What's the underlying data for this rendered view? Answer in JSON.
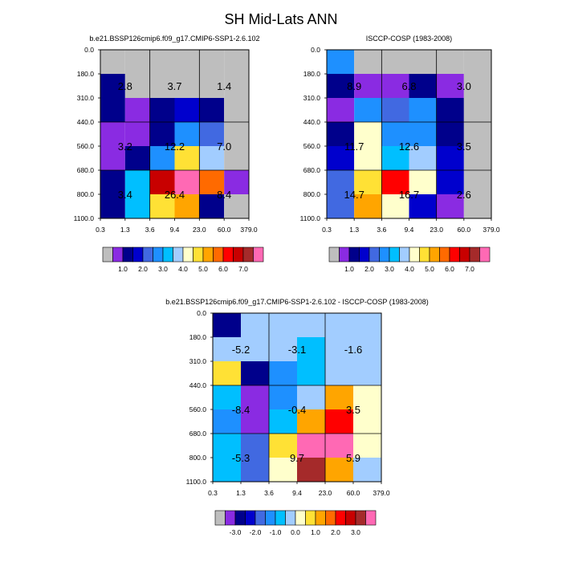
{
  "figure": {
    "title": "SH Mid-Lats ANN"
  },
  "palette": {
    "bins": [
      "#bebebe",
      "#8a2be2",
      "#00008b",
      "#0000cd",
      "#4169e1",
      "#1e90ff",
      "#00bfff",
      "#a2cdff",
      "#ffffcc",
      "#ffe135",
      "#ffa500",
      "#ff6a00",
      "#ff0000",
      "#c80000",
      "#a52a2a",
      "#ff69b4"
    ],
    "cell_stroke": "#000000",
    "divider": "#000000"
  },
  "chart_data": [
    {
      "type": "heatmap",
      "title": "b.e21.BSSP126cmip6.f09_g17.CMIP6-SSP1-2.6.102",
      "x_ticks": [
        "0.3",
        "1.3",
        "3.6",
        "9.4",
        "23.0",
        "60.0",
        "379.0"
      ],
      "y_ticks": [
        "0.0",
        "180.0",
        "310.0",
        "440.0",
        "560.0",
        "680.0",
        "800.0",
        "1100.0"
      ],
      "cells": [
        [
          0,
          0,
          0,
          0,
          0,
          0
        ],
        [
          2,
          0,
          0,
          0,
          0,
          0
        ],
        [
          2,
          1,
          2,
          3,
          2,
          0
        ],
        [
          1,
          1,
          2,
          5,
          4,
          0
        ],
        [
          1,
          2,
          5,
          9,
          7,
          0
        ],
        [
          2,
          6,
          13,
          15,
          11,
          1
        ],
        [
          2,
          6,
          9,
          10,
          2,
          0
        ]
      ],
      "quadrant_labels": [
        "2.8",
        "3.7",
        "1.4",
        "3.2",
        "12.2",
        "7.0",
        "3.4",
        "26.4",
        "8.4"
      ],
      "colorbar_labels": [
        "1.0",
        "2.0",
        "3.0",
        "4.0",
        "5.0",
        "6.0",
        "7.0"
      ]
    },
    {
      "type": "heatmap",
      "title": "ISCCP-COSP (1983-2008)",
      "x_ticks": [
        "0.3",
        "1.3",
        "3.6",
        "9.4",
        "23.0",
        "60.0",
        "379.0"
      ],
      "y_ticks": [
        "0.0",
        "180.0",
        "310.0",
        "440.0",
        "560.0",
        "680.0",
        "800.0",
        "1100.0"
      ],
      "cells": [
        [
          5,
          0,
          0,
          0,
          0,
          0
        ],
        [
          2,
          1,
          1,
          2,
          1,
          0
        ],
        [
          1,
          5,
          4,
          5,
          2,
          0
        ],
        [
          2,
          8,
          5,
          5,
          2,
          0
        ],
        [
          3,
          8,
          6,
          7,
          3,
          0
        ],
        [
          4,
          9,
          12,
          8,
          3,
          0
        ],
        [
          4,
          10,
          8,
          3,
          1,
          0
        ]
      ],
      "quadrant_labels": [
        "8.9",
        "6.8",
        "3.0",
        "11.7",
        "12.6",
        "3.5",
        "14.7",
        "16.7",
        "2.6"
      ],
      "colorbar_labels": [
        "1.0",
        "2.0",
        "3.0",
        "4.0",
        "5.0",
        "6.0",
        "7.0"
      ]
    },
    {
      "type": "heatmap",
      "title": "b.e21.BSSP126cmip6.f09_g17.CMIP6-SSP1-2.6.102 - ISCCP-COSP (1983-2008)",
      "x_ticks": [
        "0.3",
        "1.3",
        "3.6",
        "9.4",
        "23.0",
        "60.0",
        "379.0"
      ],
      "y_ticks": [
        "0.0",
        "180.0",
        "310.0",
        "440.0",
        "560.0",
        "680.0",
        "800.0",
        "1100.0"
      ],
      "cells": [
        [
          2,
          7,
          7,
          7,
          7,
          7
        ],
        [
          7,
          7,
          7,
          6,
          7,
          7
        ],
        [
          9,
          2,
          5,
          6,
          7,
          7
        ],
        [
          6,
          1,
          5,
          7,
          10,
          8
        ],
        [
          5,
          1,
          6,
          10,
          12,
          8
        ],
        [
          6,
          4,
          9,
          15,
          15,
          8
        ],
        [
          6,
          4,
          8,
          14,
          10,
          7
        ]
      ],
      "quadrant_labels": [
        "-5.2",
        "-3.1",
        "-1.6",
        "-8.4",
        "-0.4",
        "3.5",
        "-5.3",
        "9.7",
        "5.9"
      ],
      "colorbar_labels": [
        "-3.0",
        "-2.0",
        "-1.0",
        "0.0",
        "1.0",
        "2.0",
        "3.0"
      ]
    }
  ]
}
